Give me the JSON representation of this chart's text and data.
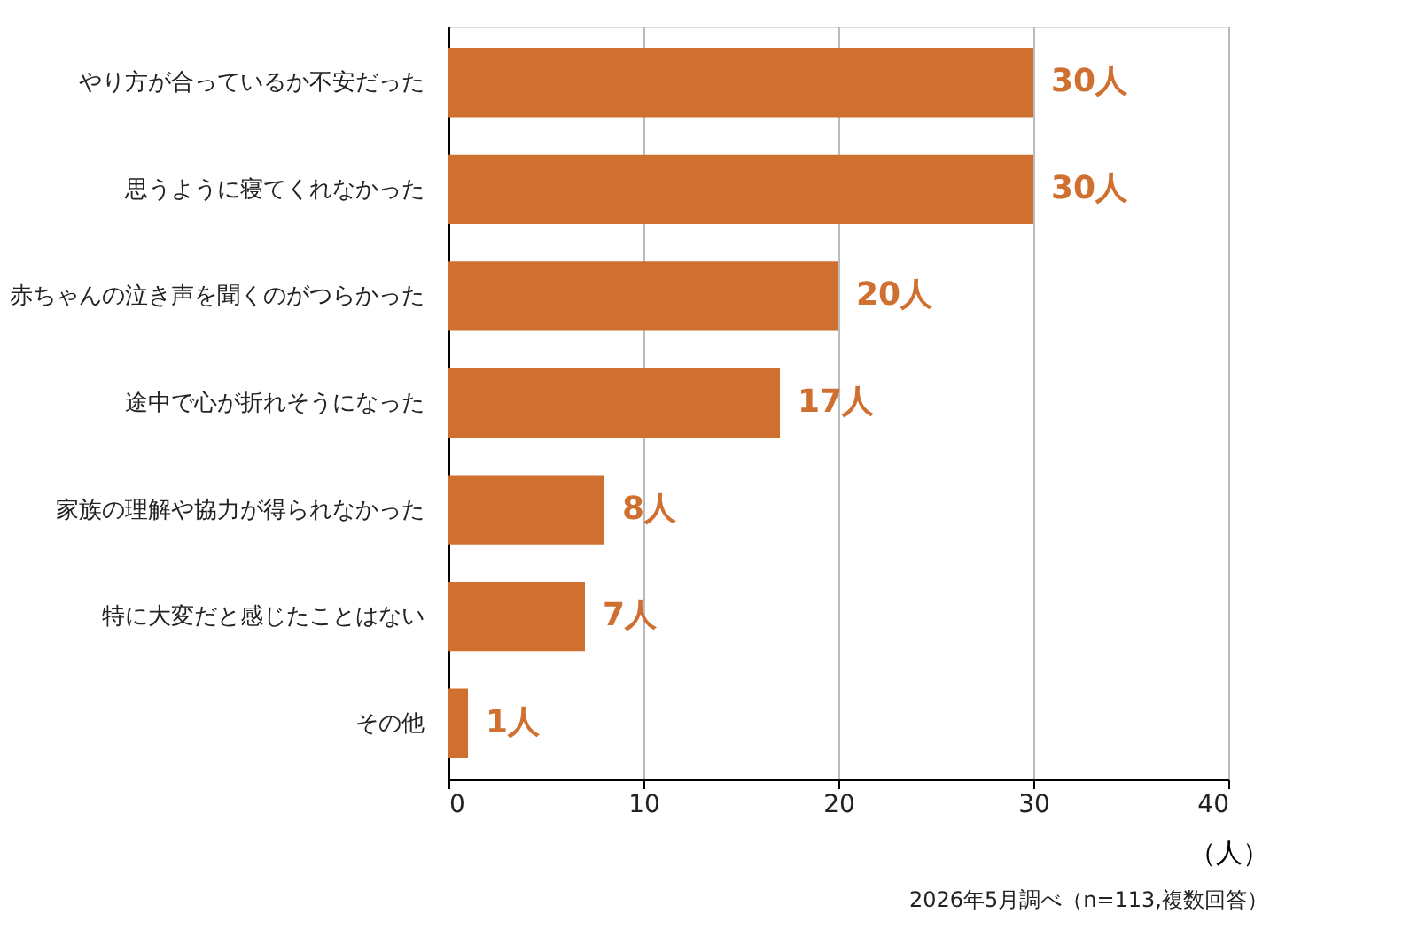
{
  "chart_data": {
    "type": "bar",
    "orientation": "horizontal",
    "categories": [
      "やり方が合っているか不安だった",
      "思うように寝てくれなかった",
      "赤ちゃんの泣き声を聞くのがつらかった",
      "途中で心が折れそうになった",
      "家族の理解や協力が得られなかった",
      "特に大変だと感じたことはない",
      "その他"
    ],
    "values": [
      30,
      30,
      20,
      17,
      8,
      7,
      1
    ],
    "value_labels": [
      "30人",
      "30人",
      "20人",
      "17人",
      "8人",
      "7人",
      "1人"
    ],
    "color": "#d07030",
    "xlim": [
      0,
      40
    ],
    "xticks": [
      0,
      10,
      20,
      30,
      40
    ],
    "xlabel": "（人）",
    "grid": "x",
    "annotations": [
      "2026年5月調べ（n=113,複数回答）"
    ]
  }
}
